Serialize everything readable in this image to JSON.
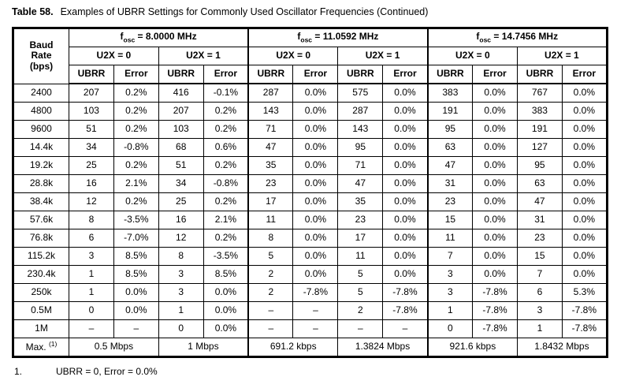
{
  "title": {
    "label": "Table 58.",
    "text": "Examples of UBRR Settings for Commonly Used Oscillator Frequencies (Continued)"
  },
  "table": {
    "corner": "Baud\nRate\n(bps)",
    "col_headers": [
      "UBRR",
      "Error"
    ],
    "sections": [
      {
        "f": "f",
        "f_sub": "osc",
        "freq": " = 8.0000 MHz",
        "u2x": [
          "U2X = 0",
          "U2X = 1"
        ]
      },
      {
        "f": "f",
        "f_sub": "osc",
        "freq": " = 11.0592 MHz",
        "u2x": [
          "U2X = 0",
          "U2X = 1"
        ]
      },
      {
        "f": "f",
        "f_sub": "osc",
        "freq": " = 14.7456 MHz",
        "u2x": [
          "U2X = 0",
          "U2X = 1"
        ]
      }
    ],
    "rows": [
      {
        "baud": "2400",
        "values": [
          "207",
          "0.2%",
          "416",
          "-0.1%",
          "287",
          "0.0%",
          "575",
          "0.0%",
          "383",
          "0.0%",
          "767",
          "0.0%"
        ]
      },
      {
        "baud": "4800",
        "values": [
          "103",
          "0.2%",
          "207",
          "0.2%",
          "143",
          "0.0%",
          "287",
          "0.0%",
          "191",
          "0.0%",
          "383",
          "0.0%"
        ]
      },
      {
        "baud": "9600",
        "values": [
          "51",
          "0.2%",
          "103",
          "0.2%",
          "71",
          "0.0%",
          "143",
          "0.0%",
          "95",
          "0.0%",
          "191",
          "0.0%"
        ]
      },
      {
        "baud": "14.4k",
        "values": [
          "34",
          "-0.8%",
          "68",
          "0.6%",
          "47",
          "0.0%",
          "95",
          "0.0%",
          "63",
          "0.0%",
          "127",
          "0.0%"
        ]
      },
      {
        "baud": "19.2k",
        "values": [
          "25",
          "0.2%",
          "51",
          "0.2%",
          "35",
          "0.0%",
          "71",
          "0.0%",
          "47",
          "0.0%",
          "95",
          "0.0%"
        ]
      },
      {
        "baud": "28.8k",
        "values": [
          "16",
          "2.1%",
          "34",
          "-0.8%",
          "23",
          "0.0%",
          "47",
          "0.0%",
          "31",
          "0.0%",
          "63",
          "0.0%"
        ]
      },
      {
        "baud": "38.4k",
        "values": [
          "12",
          "0.2%",
          "25",
          "0.2%",
          "17",
          "0.0%",
          "35",
          "0.0%",
          "23",
          "0.0%",
          "47",
          "0.0%"
        ]
      },
      {
        "baud": "57.6k",
        "values": [
          "8",
          "-3.5%",
          "16",
          "2.1%",
          "11",
          "0.0%",
          "23",
          "0.0%",
          "15",
          "0.0%",
          "31",
          "0.0%"
        ]
      },
      {
        "baud": "76.8k",
        "values": [
          "6",
          "-7.0%",
          "12",
          "0.2%",
          "8",
          "0.0%",
          "17",
          "0.0%",
          "11",
          "0.0%",
          "23",
          "0.0%"
        ]
      },
      {
        "baud": "115.2k",
        "values": [
          "3",
          "8.5%",
          "8",
          "-3.5%",
          "5",
          "0.0%",
          "11",
          "0.0%",
          "7",
          "0.0%",
          "15",
          "0.0%"
        ]
      },
      {
        "baud": "230.4k",
        "values": [
          "1",
          "8.5%",
          "3",
          "8.5%",
          "2",
          "0.0%",
          "5",
          "0.0%",
          "3",
          "0.0%",
          "7",
          "0.0%"
        ]
      },
      {
        "baud": "250k",
        "values": [
          "1",
          "0.0%",
          "3",
          "0.0%",
          "2",
          "-7.8%",
          "5",
          "-7.8%",
          "3",
          "-7.8%",
          "6",
          "5.3%"
        ]
      },
      {
        "baud": "0.5M",
        "values": [
          "0",
          "0.0%",
          "1",
          "0.0%",
          "–",
          "–",
          "2",
          "-7.8%",
          "1",
          "-7.8%",
          "3",
          "-7.8%"
        ]
      },
      {
        "baud": "1M",
        "values": [
          "–",
          "–",
          "0",
          "0.0%",
          "–",
          "–",
          "–",
          "–",
          "0",
          "-7.8%",
          "1",
          "-7.8%"
        ]
      }
    ],
    "max_row": {
      "label": "Max. ",
      "ref": "(1)",
      "values": [
        "0.5 Mbps",
        "1 Mbps",
        "691.2 kbps",
        "1.3824 Mbps",
        "921.6 kbps",
        "1.8432 Mbps"
      ]
    }
  },
  "footnote": {
    "number": "1.",
    "text": "UBRR = 0, Error = 0.0%"
  }
}
